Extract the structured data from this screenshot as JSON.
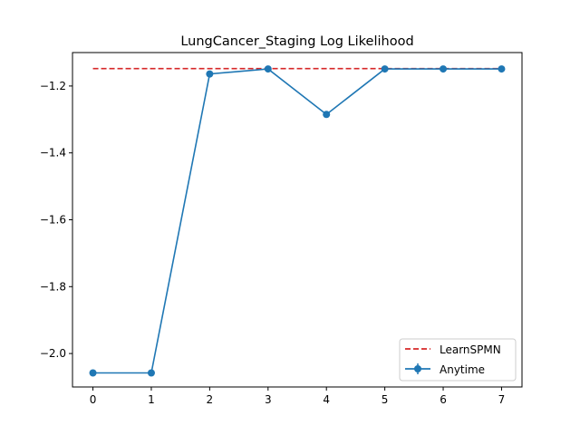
{
  "chart_data": {
    "type": "line",
    "title": "LungCancer_Staging Log Likelihood",
    "xlabel": "",
    "ylabel": "",
    "xlim": [
      -0.35,
      7.35
    ],
    "ylim": [
      -2.1,
      -1.1
    ],
    "xticks": [
      0,
      1,
      2,
      3,
      4,
      5,
      6,
      7
    ],
    "xtick_labels": [
      "0",
      "1",
      "2",
      "3",
      "4",
      "5",
      "6",
      "7"
    ],
    "yticks": [
      -2.0,
      -1.8,
      -1.6,
      -1.4,
      -1.2
    ],
    "ytick_labels": [
      "−2.0",
      "−1.8",
      "−1.6",
      "−1.4",
      "−1.2"
    ],
    "grid": false,
    "legend_position": "lower-right",
    "series": [
      {
        "name": "LearnSPMN",
        "style": "dashed",
        "color": "#d62728",
        "x": [
          0,
          7
        ],
        "values": [
          -1.148,
          -1.148
        ]
      },
      {
        "name": "Anytime",
        "style": "solid-marker",
        "color": "#1f77b4",
        "x": [
          0,
          1,
          2,
          3,
          4,
          5,
          6,
          7
        ],
        "values": [
          -2.058,
          -2.058,
          -1.164,
          -1.149,
          -1.285,
          -1.149,
          -1.149,
          -1.149
        ]
      }
    ]
  }
}
